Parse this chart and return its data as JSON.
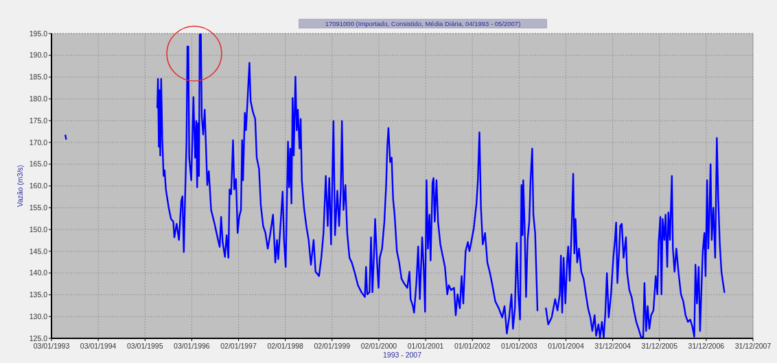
{
  "chart_data": {
    "type": "line",
    "title": "17091000 (Importado, Consistido, Média Diária, 04/1993 - 05/2007)",
    "xlabel": "1993 - 2007",
    "ylabel": "Vazão (m3/s)",
    "color": "#0000ff",
    "grid": true,
    "xlim": [
      "1993-01-03",
      "2007-12-31"
    ],
    "xticks": [
      {
        "value": "1993-01-03",
        "label": "03/01/1993"
      },
      {
        "value": "1994-01-03",
        "label": "03/01/1994"
      },
      {
        "value": "1995-01-03",
        "label": "03/01/1995"
      },
      {
        "value": "1996-01-03",
        "label": "03/01/1996"
      },
      {
        "value": "1997-01-02",
        "label": "02/01/1997"
      },
      {
        "value": "1998-01-02",
        "label": "02/01/1998"
      },
      {
        "value": "1999-01-02",
        "label": "02/01/1999"
      },
      {
        "value": "2000-01-02",
        "label": "02/01/2000"
      },
      {
        "value": "2001-01-01",
        "label": "01/01/2001"
      },
      {
        "value": "2002-01-01",
        "label": "01/01/2002"
      },
      {
        "value": "2003-01-01",
        "label": "01/01/2003"
      },
      {
        "value": "2004-01-01",
        "label": "01/01/2004"
      },
      {
        "value": "2004-12-31",
        "label": "31/12/2004"
      },
      {
        "value": "2005-12-31",
        "label": "31/12/2005"
      },
      {
        "value": "2006-12-31",
        "label": "31/12/2006"
      },
      {
        "value": "2007-12-31",
        "label": "31/12/2007"
      }
    ],
    "ylim": [
      125,
      195
    ],
    "yticks": [
      {
        "value": 125,
        "label": "125.0"
      },
      {
        "value": 130,
        "label": "130.0"
      },
      {
        "value": 135,
        "label": "135.0"
      },
      {
        "value": 140,
        "label": "140.0"
      },
      {
        "value": 145,
        "label": "145.0"
      },
      {
        "value": 150,
        "label": "150.0"
      },
      {
        "value": 155,
        "label": "155.0"
      },
      {
        "value": 160,
        "label": "160.0"
      },
      {
        "value": 165,
        "label": "165.0"
      },
      {
        "value": 170,
        "label": "170.0"
      },
      {
        "value": 175,
        "label": "175.0"
      },
      {
        "value": 180,
        "label": "180.0"
      },
      {
        "value": 185,
        "label": "185.0"
      },
      {
        "value": 190,
        "label": "190.0"
      },
      {
        "value": 195,
        "label": "195.0"
      }
    ],
    "x": [
      "1993-04-22",
      "1993-04-27",
      "1994-06-01",
      "1995-04-09",
      "1995-04-14",
      "1995-04-21",
      "1995-04-26",
      "1995-05-02",
      "1995-05-09",
      "1995-05-18",
      "1995-05-28",
      "1995-06-05",
      "1995-06-15",
      "1995-07-07",
      "1995-07-25",
      "1995-08-12",
      "1995-08-20",
      "1995-09-07",
      "1995-09-25",
      "1995-10-13",
      "1995-10-22",
      "1995-11-02",
      "1995-11-12",
      "1995-11-23",
      "1995-11-30",
      "1995-12-07",
      "1995-12-14",
      "1995-12-30",
      "1996-01-16",
      "1996-01-29",
      "1996-02-07",
      "1996-02-14",
      "1996-02-21",
      "1996-02-28",
      "1996-03-05",
      "1996-03-14",
      "1996-03-21",
      "1996-04-01",
      "1996-04-13",
      "1996-04-22",
      "1996-05-03",
      "1996-05-15",
      "1996-06-02",
      "1996-06-29",
      "1996-07-26",
      "1996-08-08",
      "1996-08-19",
      "1996-08-31",
      "1996-09-18",
      "1996-10-01",
      "1996-10-15",
      "1996-10-24",
      "1996-11-05",
      "1996-11-20",
      "1996-11-30",
      "1996-12-13",
      "1996-12-26",
      "1997-01-07",
      "1997-01-21",
      "1997-01-30",
      "1997-02-06",
      "1997-02-20",
      "1997-03-01",
      "1997-03-14",
      "1997-03-28",
      "1997-04-06",
      "1997-04-24",
      "1997-05-12",
      "1997-05-24",
      "1997-06-11",
      "1997-06-25",
      "1997-07-13",
      "1997-07-31",
      "1997-08-18",
      "1997-09-05",
      "1997-09-28",
      "1997-10-16",
      "1997-10-29",
      "1997-11-08",
      "1997-11-26",
      "1997-12-12",
      "1997-12-23",
      "1998-01-05",
      "1998-01-14",
      "1998-01-23",
      "1998-02-01",
      "1998-02-10",
      "1998-02-19",
      "1998-02-28",
      "1998-03-09",
      "1998-03-22",
      "1998-04-01",
      "1998-04-10",
      "1998-04-23",
      "1998-05-02",
      "1998-05-11",
      "1998-05-28",
      "1998-06-15",
      "1998-07-03",
      "1998-07-21",
      "1998-08-11",
      "1998-08-26",
      "1998-09-22",
      "1998-10-10",
      "1998-10-27",
      "1998-11-14",
      "1998-11-29",
      "1998-12-11",
      "1998-12-25",
      "1999-01-13",
      "1999-01-25",
      "1999-02-12",
      "1999-02-26",
      "1999-03-11",
      "1999-03-20",
      "1999-04-01",
      "1999-04-16",
      "1999-04-30",
      "1999-05-18",
      "1999-06-05",
      "1999-06-26",
      "1999-07-23",
      "1999-08-19",
      "1999-09-15",
      "1999-09-24",
      "1999-10-03",
      "1999-10-21",
      "1999-11-02",
      "1999-11-13",
      "1999-11-25",
      "1999-12-04",
      "1999-12-19",
      "1999-12-31",
      "2000-01-09",
      "2000-01-27",
      "2000-02-14",
      "2000-02-28",
      "2000-03-08",
      "2000-03-17",
      "2000-03-30",
      "2000-04-11",
      "2000-04-22",
      "2000-05-04",
      "2000-05-22",
      "2000-06-09",
      "2000-06-27",
      "2000-07-15",
      "2000-08-11",
      "2000-08-28",
      "2000-09-06",
      "2000-09-24",
      "2000-10-03",
      "2000-10-21",
      "2000-11-04",
      "2000-11-17",
      "2000-12-05",
      "2000-12-17",
      "2000-12-28",
      "2001-01-08",
      "2001-01-19",
      "2001-01-31",
      "2001-02-09",
      "2001-02-24",
      "2001-03-04",
      "2001-03-13",
      "2001-03-27",
      "2001-04-08",
      "2001-04-26",
      "2001-05-14",
      "2001-06-01",
      "2001-06-19",
      "2001-07-01",
      "2001-07-19",
      "2001-08-11",
      "2001-08-24",
      "2001-09-07",
      "2001-09-25",
      "2001-10-09",
      "2001-10-22",
      "2001-11-09",
      "2001-11-27",
      "2001-12-09",
      "2001-12-20",
      "2002-01-12",
      "2002-02-02",
      "2002-02-13",
      "2002-02-25",
      "2002-03-09",
      "2002-03-23",
      "2002-04-10",
      "2002-04-28",
      "2002-05-16",
      "2002-06-03",
      "2002-06-29",
      "2002-07-26",
      "2002-08-22",
      "2002-09-09",
      "2002-09-27",
      "2002-10-15",
      "2002-11-02",
      "2002-11-14",
      "2002-11-29",
      "2002-12-13",
      "2002-12-26",
      "2003-01-08",
      "2003-01-19",
      "2003-01-28",
      "2003-02-02",
      "2003-02-13",
      "2003-02-24",
      "2003-03-08",
      "2003-03-21",
      "2003-03-31",
      "2003-04-13",
      "2003-04-22",
      "2003-05-06",
      "2003-05-13",
      "2003-05-24",
      "2003-07-01",
      "2003-07-29",
      "2003-08-16",
      "2003-09-12",
      "2003-10-09",
      "2003-10-27",
      "2003-11-14",
      "2003-11-23",
      "2003-12-03",
      "2003-12-14",
      "2003-12-28",
      "2004-01-10",
      "2004-01-19",
      "2004-01-31",
      "2004-02-15",
      "2004-02-27",
      "2004-03-07",
      "2004-03-16",
      "2004-03-29",
      "2004-04-12",
      "2004-04-30",
      "2004-05-18",
      "2004-06-05",
      "2004-06-22",
      "2004-07-10",
      "2004-07-25",
      "2004-08-12",
      "2004-08-24",
      "2004-09-11",
      "2004-09-23",
      "2004-10-08",
      "2004-10-22",
      "2004-11-04",
      "2004-11-16",
      "2004-11-30",
      "2004-12-18",
      "2005-01-05",
      "2005-01-18",
      "2005-01-27",
      "2005-02-06",
      "2005-02-19",
      "2005-02-28",
      "2005-03-12",
      "2005-03-26",
      "2005-04-14",
      "2005-04-22",
      "2005-05-10",
      "2005-05-28",
      "2005-06-15",
      "2005-07-03",
      "2005-07-21",
      "2005-08-08",
      "2005-08-26",
      "2005-09-05",
      "2005-09-18",
      "2005-09-30",
      "2005-10-13",
      "2005-10-27",
      "2005-11-14",
      "2005-12-02",
      "2005-12-15",
      "2005-12-25",
      "2006-01-07",
      "2006-01-16",
      "2006-01-25",
      "2006-02-07",
      "2006-02-17",
      "2006-03-02",
      "2006-03-11",
      "2006-03-23",
      "2006-04-07",
      "2006-04-15",
      "2006-04-28",
      "2006-05-12",
      "2006-05-30",
      "2006-06-17",
      "2006-07-05",
      "2006-07-23",
      "2006-08-10",
      "2006-08-28",
      "2006-09-14",
      "2006-09-29",
      "2006-10-08",
      "2006-10-20",
      "2006-11-02",
      "2006-11-13",
      "2006-11-25",
      "2006-12-04",
      "2006-12-17",
      "2006-12-26",
      "2007-01-07",
      "2007-01-16",
      "2007-01-25",
      "2007-02-03",
      "2007-02-12",
      "2007-02-25",
      "2007-03-11",
      "2007-03-24",
      "2007-04-04",
      "2007-04-16",
      "2007-04-29",
      "2007-05-09",
      "2007-05-22"
    ],
    "values": [
      171.6,
      170.8,
      null,
      178,
      184.6,
      169,
      182,
      167,
      184.6,
      170.7,
      162.3,
      163.6,
      159.2,
      155,
      152.4,
      151.8,
      148.2,
      151.3,
      147.6,
      156.6,
      157.6,
      144.8,
      157.6,
      170.2,
      192,
      192,
      166.5,
      161.3,
      180.4,
      166.5,
      174.9,
      159.7,
      174.4,
      162.3,
      194.8,
      194.8,
      176,
      171.8,
      177.5,
      169.7,
      160.2,
      163.4,
      154.5,
      151.3,
      147.6,
      146,
      152.9,
      147.1,
      143.7,
      148.7,
      143.5,
      159.2,
      158.1,
      170.5,
      159.2,
      161.6,
      149.2,
      152.9,
      154.5,
      170.5,
      161.3,
      176.8,
      172.8,
      180.2,
      188.3,
      179.6,
      177,
      175.4,
      166.5,
      163.9,
      155.5,
      150.8,
      149.2,
      145.6,
      148.7,
      153.4,
      142.4,
      147.6,
      143.2,
      151.3,
      158.7,
      147.6,
      141.4,
      156,
      170.2,
      159.7,
      168.6,
      156,
      180.2,
      167,
      185.1,
      172.8,
      177.5,
      168.6,
      175.4,
      161.3,
      155,
      150.8,
      147.6,
      141.9,
      147.6,
      140.3,
      139.3,
      143.5,
      149.2,
      162.3,
      150.8,
      161.8,
      146.6,
      174.9,
      148.7,
      158.9,
      150.8,
      159.2,
      174.9,
      154.5,
      160.2,
      149.2,
      143.5,
      142.4,
      140.3,
      137.2,
      135.6,
      134.5,
      141.4,
      135.1,
      135.6,
      148.2,
      135.6,
      144,
      152.4,
      142.4,
      136.6,
      143.5,
      145.6,
      151.8,
      160.2,
      169.1,
      173.3,
      165.5,
      166.5,
      157.1,
      153.4,
      145,
      142.4,
      138.7,
      137.7,
      136.6,
      140.3,
      134,
      132.4,
      130.9,
      137.7,
      146.1,
      134,
      148.2,
      141.4,
      131.1,
      161.3,
      145.6,
      153.4,
      142.9,
      160.8,
      161.8,
      151.8,
      161.3,
      151.8,
      146.6,
      144,
      141.4,
      135.1,
      137.2,
      136.1,
      136.6,
      130.3,
      135.1,
      131.9,
      139.3,
      133,
      145,
      147.1,
      145,
      146.6,
      150.3,
      156,
      161.3,
      172.3,
      155,
      146.6,
      149.2,
      142.4,
      140.3,
      137.7,
      133.5,
      131.9,
      129.8,
      132.4,
      126.1,
      129.8,
      135.1,
      127.2,
      131.9,
      146.9,
      135.1,
      129.3,
      160.2,
      148.7,
      161.3,
      150.8,
      134.5,
      147.6,
      151.8,
      161.3,
      168.6,
      153.4,
      149.2,
      142.4,
      131.4,
      null,
      131.9,
      128.2,
      129.8,
      134,
      131.4,
      135.1,
      144,
      130.9,
      143.5,
      133,
      142.4,
      146.1,
      138.2,
      150.3,
      162.8,
      144.5,
      152.4,
      142.4,
      145.6,
      140.3,
      138.7,
      135.1,
      131.9,
      129.8,
      126.7,
      130.3,
      125.6,
      128.2,
      125.2,
      128.8,
      125.1,
      130.9,
      140,
      129.8,
      135.1,
      143.5,
      147.6,
      151.6,
      137.7,
      145,
      150.8,
      151.3,
      143.5,
      148.2,
      140.3,
      136.1,
      134.5,
      131.4,
      128.8,
      127.2,
      125.4,
      125,
      137.7,
      126.7,
      132.4,
      127.2,
      130.3,
      131.4,
      139.3,
      135.1,
      147.1,
      152.9,
      135.1,
      152.4,
      147.6,
      153.4,
      141.4,
      153.9,
      147.6,
      162.3,
      145.6,
      140.3,
      145.6,
      139.8,
      135.1,
      133.5,
      130.3,
      128.8,
      129.3,
      127.7,
      125.4,
      141.9,
      133,
      141.4,
      126.7,
      137.2,
      145,
      149.2,
      139.3,
      161.3,
      145.6,
      153.9,
      165,
      147.6,
      155,
      143.5,
      171,
      157.1,
      146.6,
      140.3,
      138.2,
      135.6
    ]
  }
}
